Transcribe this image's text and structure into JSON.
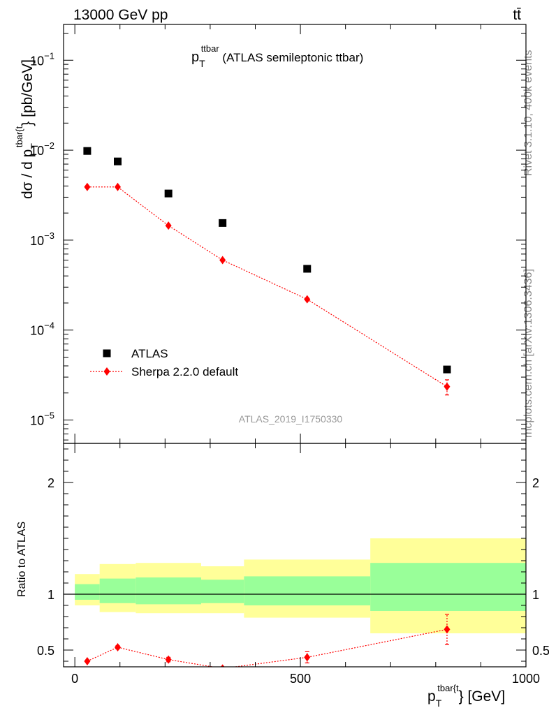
{
  "header": {
    "energy_label": "13000 GeV pp",
    "process_label": "tt̄"
  },
  "side_labels": {
    "rivet_info": "Rivet 3.1.10,  400k events",
    "source_info": "mcplots.cern.ch [arXiv:1306.3436]"
  },
  "chart_data": [
    {
      "type": "scatter",
      "panel": "main",
      "title_main": "p",
      "title_sub": "T",
      "title_sup": "ttbar",
      "title_rest": " (ATLAS semileptonic ttbar)",
      "ylabel_prefix": "dσ / d p",
      "ylabel_sub": "T",
      "ylabel_sup": "tbar{t",
      "ylabel_suffix": "} [pb/GeV]",
      "y_scale": "log",
      "ylim": [
        5.5e-06,
        0.25
      ],
      "xlim": [
        -25,
        1000
      ],
      "y_tick_labels": [
        {
          "base": "10",
          "exp": "−5",
          "value": 1e-05
        },
        {
          "base": "10",
          "exp": "−4",
          "value": 0.0001
        },
        {
          "base": "10",
          "exp": "−3",
          "value": 0.001
        },
        {
          "base": "10",
          "exp": "−2",
          "value": 0.01
        },
        {
          "base": "10",
          "exp": "−1",
          "value": 0.1
        }
      ],
      "analysis_label": "ATLAS_2019_I1750330",
      "legend_position": "bottom-left",
      "series": [
        {
          "name": "ATLAS",
          "color": "#000000",
          "marker": "square",
          "x": [
            27.5,
            95,
            207.5,
            327.5,
            515,
            825
          ],
          "y": [
            0.0098,
            0.0075,
            0.0033,
            0.00155,
            0.00048,
            3.65e-05
          ]
        },
        {
          "name": "Sherpa 2.2.0 default",
          "color": "#ff0000",
          "marker": "diamond",
          "line": "dotted",
          "x": [
            27.5,
            95,
            207.5,
            327.5,
            515,
            825
          ],
          "y": [
            0.0039,
            0.0039,
            0.00145,
            0.0006,
            0.00022,
            2.35e-05
          ],
          "y_err": [
            0,
            0,
            0,
            0,
            0,
            4.5e-06
          ]
        }
      ]
    },
    {
      "type": "line",
      "panel": "ratio",
      "ylabel": "Ratio to ATLAS",
      "xlabel_main": "p",
      "xlabel_sub": "T",
      "xlabel_sup": "tbar{t",
      "xlabel_suffix": "} [GeV]",
      "xlim": [
        -25,
        1000
      ],
      "ylim": [
        0.35,
        2.35
      ],
      "x_ticks": [
        0,
        500,
        1000
      ],
      "x_tick_labels": [
        "0",
        "500",
        "1000"
      ],
      "y_ticks": [
        0.5,
        1,
        2
      ],
      "y_tick_labels": [
        "0.5",
        "1",
        "2"
      ],
      "bands": [
        {
          "x0": 0,
          "x1": 55,
          "yellow": [
            0.9,
            1.18
          ],
          "green": [
            0.95,
            1.09
          ]
        },
        {
          "x0": 55,
          "x1": 135,
          "yellow": [
            0.84,
            1.27
          ],
          "green": [
            0.92,
            1.14
          ]
        },
        {
          "x0": 135,
          "x1": 280,
          "yellow": [
            0.83,
            1.28
          ],
          "green": [
            0.91,
            1.15
          ]
        },
        {
          "x0": 280,
          "x1": 375,
          "yellow": [
            0.83,
            1.25
          ],
          "green": [
            0.92,
            1.13
          ]
        },
        {
          "x0": 375,
          "x1": 655,
          "yellow": [
            0.79,
            1.31
          ],
          "green": [
            0.9,
            1.16
          ]
        },
        {
          "x0": 655,
          "x1": 1000,
          "yellow": [
            0.65,
            1.5
          ],
          "green": [
            0.85,
            1.28
          ]
        }
      ],
      "series": [
        {
          "name": "Sherpa 2.2.0 default",
          "color": "#ff0000",
          "marker": "diamond",
          "x": [
            27.5,
            95,
            207.5,
            327.5,
            515,
            825
          ],
          "y": [
            0.4,
            0.525,
            0.415,
            0.335,
            0.435,
            0.685
          ],
          "y_err": [
            0,
            0.015,
            0.02,
            0,
            0.05,
            0.135
          ]
        }
      ]
    }
  ]
}
